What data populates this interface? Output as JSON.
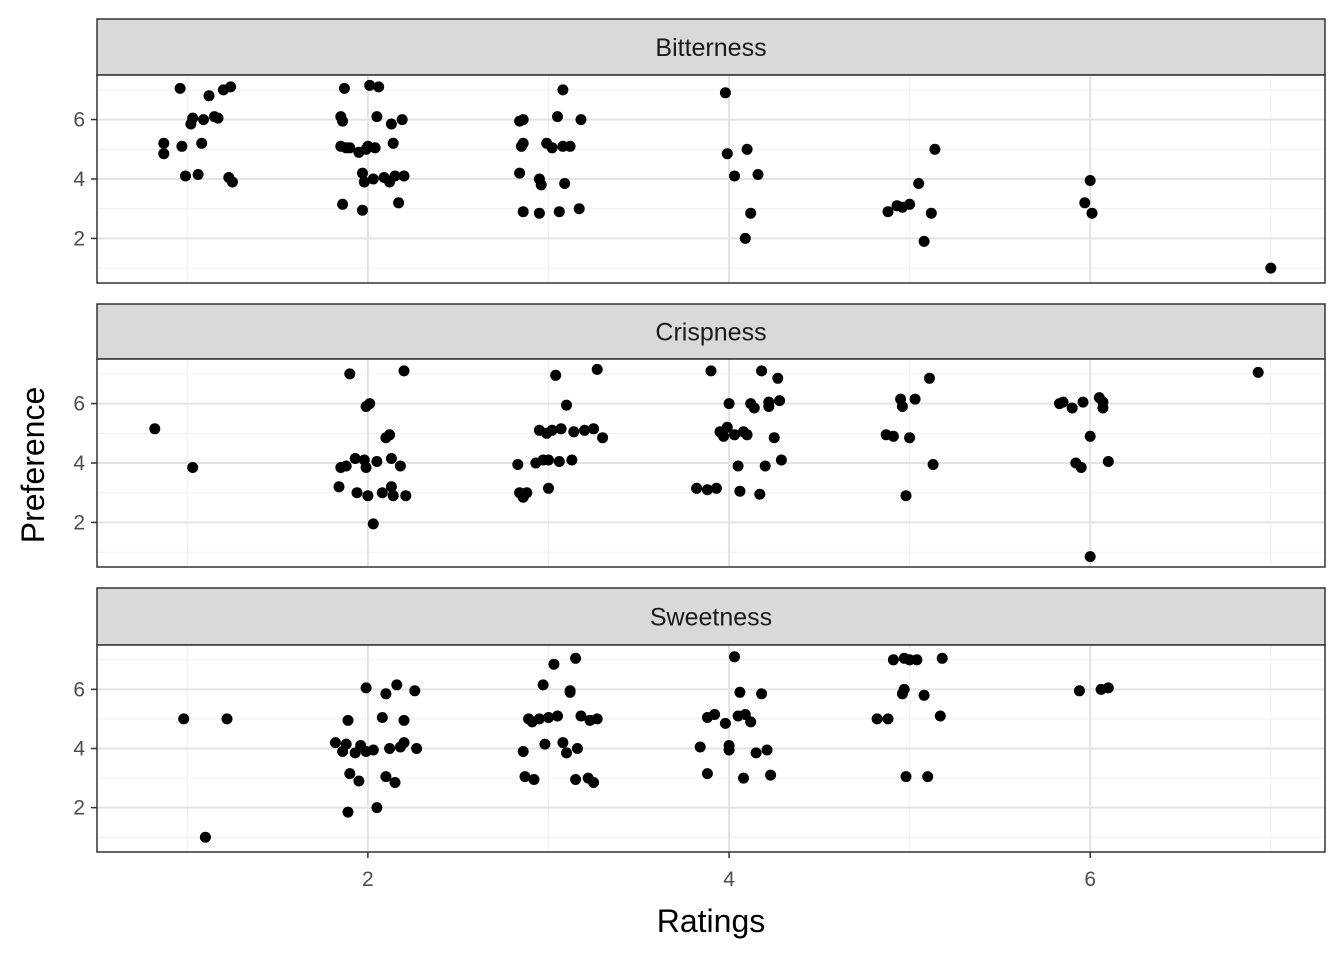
{
  "chart_data": {
    "type": "scatter",
    "facet_layout": "vertical",
    "xlabel": "Ratings",
    "ylabel": "Preference",
    "xlim": [
      0.5,
      7.3
    ],
    "ylim": [
      0.5,
      7.5
    ],
    "x_ticks": [
      2,
      4,
      6
    ],
    "y_ticks": [
      2,
      4,
      6
    ],
    "grid": true,
    "point_color": "#000000",
    "strip_color": "#d9d9d9",
    "panels": [
      {
        "label": "Bitterness",
        "points": [
          [
            0.87,
            5.2
          ],
          [
            0.87,
            4.85
          ],
          [
            0.96,
            7.05
          ],
          [
            0.97,
            5.1
          ],
          [
            0.99,
            4.1
          ],
          [
            1.02,
            5.85
          ],
          [
            1.03,
            6.05
          ],
          [
            1.06,
            4.15
          ],
          [
            1.08,
            5.2
          ],
          [
            1.09,
            6.0
          ],
          [
            1.12,
            6.8
          ],
          [
            1.15,
            6.1
          ],
          [
            1.17,
            6.05
          ],
          [
            1.2,
            7.0
          ],
          [
            1.23,
            4.05
          ],
          [
            1.24,
            7.1
          ],
          [
            1.25,
            3.9
          ],
          [
            1.87,
            7.05
          ],
          [
            1.85,
            6.1
          ],
          [
            1.86,
            5.95
          ],
          [
            1.85,
            5.1
          ],
          [
            1.86,
            3.15
          ],
          [
            1.88,
            5.05
          ],
          [
            1.9,
            5.05
          ],
          [
            1.95,
            4.9
          ],
          [
            1.97,
            4.2
          ],
          [
            1.98,
            3.9
          ],
          [
            1.97,
            2.95
          ],
          [
            1.99,
            5.0
          ],
          [
            2.0,
            5.1
          ],
          [
            2.01,
            7.15
          ],
          [
            2.03,
            4.0
          ],
          [
            2.04,
            5.05
          ],
          [
            2.05,
            6.1
          ],
          [
            2.06,
            7.1
          ],
          [
            2.09,
            4.05
          ],
          [
            2.12,
            3.9
          ],
          [
            2.14,
            5.2
          ],
          [
            2.13,
            5.85
          ],
          [
            2.15,
            4.1
          ],
          [
            2.17,
            3.2
          ],
          [
            2.19,
            6.0
          ],
          [
            2.2,
            4.1
          ],
          [
            2.84,
            5.95
          ],
          [
            2.86,
            6.0
          ],
          [
            2.85,
            5.1
          ],
          [
            2.84,
            4.2
          ],
          [
            2.86,
            5.2
          ],
          [
            2.86,
            2.9
          ],
          [
            2.95,
            4.0
          ],
          [
            2.96,
            3.8
          ],
          [
            2.99,
            5.2
          ],
          [
            3.02,
            5.05
          ],
          [
            3.05,
            6.1
          ],
          [
            3.06,
            2.9
          ],
          [
            3.08,
            5.1
          ],
          [
            3.09,
            3.85
          ],
          [
            3.12,
            5.1
          ],
          [
            3.18,
            6.0
          ],
          [
            3.17,
            3.0
          ],
          [
            3.08,
            7.0
          ],
          [
            2.95,
            2.85
          ],
          [
            3.98,
            6.9
          ],
          [
            3.99,
            4.85
          ],
          [
            4.03,
            4.1
          ],
          [
            4.1,
            5.0
          ],
          [
            4.12,
            2.85
          ],
          [
            4.09,
            2.0
          ],
          [
            4.16,
            4.15
          ],
          [
            4.88,
            2.9
          ],
          [
            4.93,
            3.1
          ],
          [
            4.96,
            3.05
          ],
          [
            5.0,
            3.15
          ],
          [
            5.05,
            3.85
          ],
          [
            5.08,
            1.9
          ],
          [
            5.12,
            2.85
          ],
          [
            5.14,
            5.0
          ],
          [
            5.97,
            3.2
          ],
          [
            6.0,
            3.95
          ],
          [
            6.01,
            2.85
          ],
          [
            7.0,
            1.0
          ]
        ]
      },
      {
        "label": "Crispness",
        "points": [
          [
            0.82,
            5.15
          ],
          [
            1.03,
            3.85
          ],
          [
            1.84,
            3.2
          ],
          [
            1.85,
            3.85
          ],
          [
            1.88,
            3.9
          ],
          [
            1.9,
            7.0
          ],
          [
            1.93,
            4.15
          ],
          [
            1.94,
            3.0
          ],
          [
            1.98,
            4.1
          ],
          [
            1.99,
            3.85
          ],
          [
            2.0,
            2.9
          ],
          [
            1.99,
            5.9
          ],
          [
            2.01,
            6.0
          ],
          [
            2.03,
            1.95
          ],
          [
            2.05,
            4.05
          ],
          [
            2.08,
            3.0
          ],
          [
            2.1,
            4.85
          ],
          [
            2.12,
            4.95
          ],
          [
            2.13,
            4.15
          ],
          [
            2.14,
            2.9
          ],
          [
            2.13,
            3.2
          ],
          [
            2.18,
            3.9
          ],
          [
            2.21,
            2.9
          ],
          [
            2.2,
            7.1
          ],
          [
            2.83,
            3.95
          ],
          [
            2.84,
            3.0
          ],
          [
            2.86,
            2.85
          ],
          [
            2.88,
            3.0
          ],
          [
            2.93,
            4.0
          ],
          [
            2.95,
            5.1
          ],
          [
            2.97,
            4.1
          ],
          [
            2.99,
            5.0
          ],
          [
            3.0,
            4.1
          ],
          [
            3.0,
            3.15
          ],
          [
            3.02,
            5.1
          ],
          [
            3.04,
            6.95
          ],
          [
            3.06,
            4.05
          ],
          [
            3.07,
            5.15
          ],
          [
            3.1,
            5.95
          ],
          [
            3.13,
            4.1
          ],
          [
            3.14,
            5.05
          ],
          [
            3.2,
            5.1
          ],
          [
            3.25,
            5.15
          ],
          [
            3.27,
            7.15
          ],
          [
            3.3,
            4.85
          ],
          [
            3.82,
            3.15
          ],
          [
            3.88,
            3.1
          ],
          [
            3.93,
            3.15
          ],
          [
            3.9,
            7.1
          ],
          [
            3.95,
            5.05
          ],
          [
            3.97,
            4.9
          ],
          [
            3.99,
            5.2
          ],
          [
            4.0,
            6.0
          ],
          [
            4.03,
            4.95
          ],
          [
            4.05,
            3.9
          ],
          [
            4.06,
            3.05
          ],
          [
            4.08,
            5.05
          ],
          [
            4.1,
            4.95
          ],
          [
            4.12,
            6.0
          ],
          [
            4.14,
            5.85
          ],
          [
            4.18,
            7.1
          ],
          [
            4.17,
            2.95
          ],
          [
            4.2,
            3.9
          ],
          [
            4.22,
            5.9
          ],
          [
            4.22,
            6.05
          ],
          [
            4.25,
            4.85
          ],
          [
            4.27,
            6.85
          ],
          [
            4.28,
            6.1
          ],
          [
            4.29,
            4.1
          ],
          [
            4.87,
            4.95
          ],
          [
            4.91,
            4.9
          ],
          [
            4.95,
            6.15
          ],
          [
            4.96,
            5.9
          ],
          [
            4.98,
            2.9
          ],
          [
            5.0,
            4.85
          ],
          [
            5.03,
            6.15
          ],
          [
            5.11,
            6.85
          ],
          [
            5.13,
            3.95
          ],
          [
            5.83,
            6.0
          ],
          [
            5.85,
            6.05
          ],
          [
            5.9,
            5.85
          ],
          [
            5.92,
            4.0
          ],
          [
            5.95,
            3.85
          ],
          [
            5.96,
            6.05
          ],
          [
            6.0,
            4.9
          ],
          [
            6.05,
            6.2
          ],
          [
            6.07,
            5.85
          ],
          [
            6.07,
            6.05
          ],
          [
            6.1,
            4.05
          ],
          [
            6.0,
            0.85
          ],
          [
            6.93,
            7.05
          ]
        ]
      },
      {
        "label": "Sweetness",
        "points": [
          [
            0.98,
            5.0
          ],
          [
            1.1,
            1.0
          ],
          [
            1.22,
            5.0
          ],
          [
            1.82,
            4.2
          ],
          [
            1.86,
            3.9
          ],
          [
            1.88,
            4.15
          ],
          [
            1.89,
            1.85
          ],
          [
            1.89,
            4.95
          ],
          [
            1.9,
            3.15
          ],
          [
            1.93,
            3.85
          ],
          [
            1.95,
            2.9
          ],
          [
            1.96,
            4.1
          ],
          [
            1.99,
            3.9
          ],
          [
            1.99,
            6.05
          ],
          [
            2.03,
            3.95
          ],
          [
            2.05,
            2.0
          ],
          [
            2.08,
            5.05
          ],
          [
            2.1,
            3.05
          ],
          [
            2.1,
            5.85
          ],
          [
            2.12,
            4.0
          ],
          [
            2.15,
            2.85
          ],
          [
            2.16,
            6.15
          ],
          [
            2.18,
            4.05
          ],
          [
            2.2,
            4.95
          ],
          [
            2.2,
            4.2
          ],
          [
            2.26,
            5.95
          ],
          [
            2.27,
            4.0
          ],
          [
            2.86,
            3.9
          ],
          [
            2.87,
            3.05
          ],
          [
            2.89,
            5.0
          ],
          [
            2.91,
            4.9
          ],
          [
            2.92,
            2.95
          ],
          [
            2.95,
            5.0
          ],
          [
            2.97,
            6.15
          ],
          [
            2.98,
            4.15
          ],
          [
            3.0,
            5.05
          ],
          [
            3.03,
            6.85
          ],
          [
            3.05,
            5.1
          ],
          [
            3.08,
            4.2
          ],
          [
            3.1,
            3.85
          ],
          [
            3.12,
            5.9
          ],
          [
            3.12,
            5.95
          ],
          [
            3.15,
            2.95
          ],
          [
            3.16,
            4.0
          ],
          [
            3.15,
            7.05
          ],
          [
            3.18,
            5.1
          ],
          [
            3.22,
            3.0
          ],
          [
            3.23,
            4.95
          ],
          [
            3.25,
            2.85
          ],
          [
            3.27,
            5.0
          ],
          [
            3.84,
            4.05
          ],
          [
            3.88,
            5.05
          ],
          [
            3.88,
            3.15
          ],
          [
            3.92,
            5.15
          ],
          [
            3.98,
            4.85
          ],
          [
            4.0,
            3.95
          ],
          [
            4.0,
            4.1
          ],
          [
            4.03,
            7.1
          ],
          [
            4.05,
            5.1
          ],
          [
            4.06,
            5.9
          ],
          [
            4.08,
            3.0
          ],
          [
            4.09,
            5.15
          ],
          [
            4.12,
            4.9
          ],
          [
            4.15,
            3.85
          ],
          [
            4.18,
            5.85
          ],
          [
            4.21,
            3.95
          ],
          [
            4.23,
            3.1
          ],
          [
            4.82,
            5.0
          ],
          [
            4.88,
            5.0
          ],
          [
            4.91,
            7.0
          ],
          [
            4.96,
            5.85
          ],
          [
            4.97,
            7.05
          ],
          [
            4.97,
            6.0
          ],
          [
            4.98,
            3.05
          ],
          [
            5.0,
            7.0
          ],
          [
            5.04,
            7.0
          ],
          [
            5.08,
            5.8
          ],
          [
            5.1,
            3.05
          ],
          [
            5.17,
            5.1
          ],
          [
            5.18,
            7.05
          ],
          [
            5.94,
            5.95
          ],
          [
            6.06,
            6.0
          ],
          [
            6.1,
            6.05
          ]
        ]
      }
    ]
  }
}
